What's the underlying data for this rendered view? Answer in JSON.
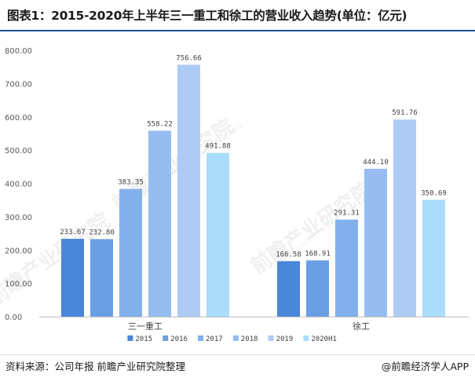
{
  "title": "图表1：2015-2020年上半年三一重工和徐工的营业收入趋势(单位：亿元)",
  "source": "资料来源：公司年报 前瞻产业研究院整理",
  "credit": "@前瞻经济学人APP",
  "watermark": {
    "main": "前瞻产业研究院",
    "sub": "QIANZHAN INDUSTRY RESEARCH INSTITUTE"
  },
  "chart_data": {
    "type": "bar",
    "categories": [
      "三一重工",
      "徐工"
    ],
    "series": [
      {
        "name": "2015",
        "color": "#4a86d9",
        "values": [
          233.67,
          166.58
        ]
      },
      {
        "name": "2016",
        "color": "#6b9fe3",
        "values": [
          232.8,
          168.91
        ]
      },
      {
        "name": "2017",
        "color": "#82b0eb",
        "values": [
          383.35,
          291.31
        ]
      },
      {
        "name": "2018",
        "color": "#97bdf0",
        "values": [
          558.22,
          444.1
        ]
      },
      {
        "name": "2019",
        "color": "#aecbf5",
        "values": [
          756.66,
          591.76
        ]
      },
      {
        "name": "2020H1",
        "color": "#a9dcfb",
        "values": [
          491.88,
          350.69
        ]
      }
    ],
    "ylim": [
      0,
      800
    ],
    "yticks": [
      "0.00",
      "100.00",
      "200.00",
      "300.00",
      "400.00",
      "500.00",
      "600.00",
      "700.00",
      "800.00"
    ],
    "xlabel": "",
    "ylabel": "",
    "legend_position": "bottom"
  }
}
